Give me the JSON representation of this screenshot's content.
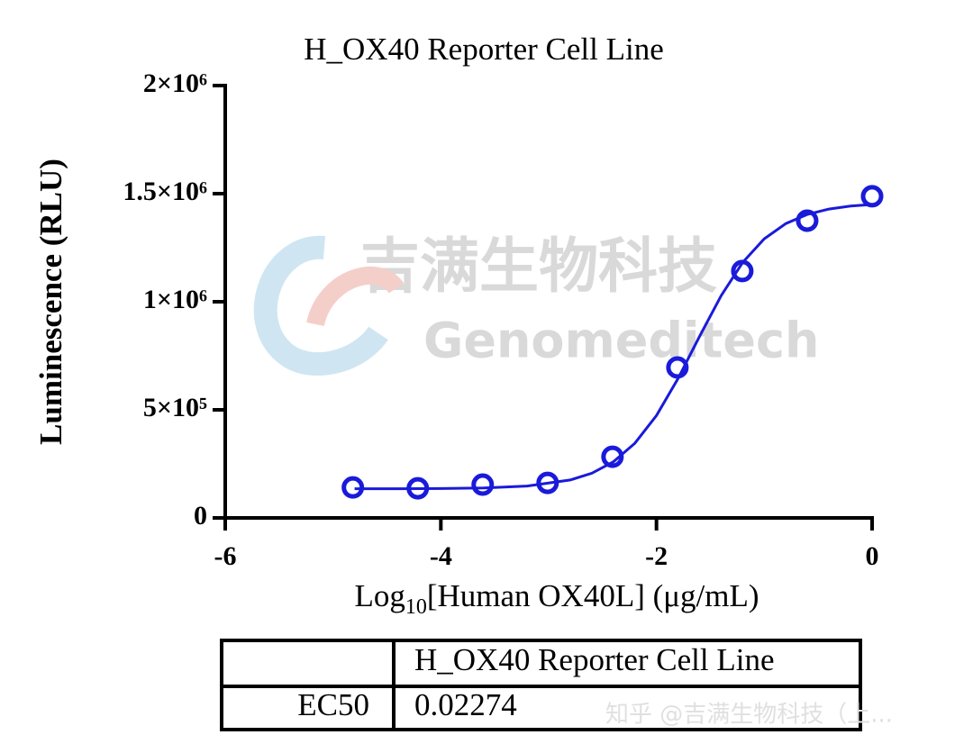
{
  "chart_data": {
    "type": "scatter",
    "title": "H_OX40 Reporter Cell Line",
    "ylabel": "Luminescence (RLU)",
    "xlabel": [
      "Log",
      "10",
      "[Human OX40L] (μg/mL)"
    ],
    "x": [
      -4.816,
      -4.214,
      -3.612,
      -3.01,
      -2.408,
      -1.806,
      -1.204,
      -0.602,
      0
    ],
    "values": [
      141000,
      137000,
      154000,
      162000,
      283000,
      696000,
      1142000,
      1375000,
      1488000
    ],
    "color": "#1a1adb",
    "curve": {
      "x": [
        -4.8,
        -4.4,
        -4.0,
        -3.6,
        -3.2,
        -2.8,
        -2.6,
        -2.4,
        -2.2,
        -2.0,
        -1.8,
        -1.6,
        -1.4,
        -1.2,
        -1.0,
        -0.8,
        -0.6,
        -0.4,
        -0.2,
        0
      ],
      "values": [
        135000,
        135000,
        136000,
        138800,
        147400,
        175300,
        206500,
        259500,
        345300,
        473900,
        644600,
        840200,
        1028400,
        1182000,
        1291200,
        1361600,
        1404000,
        1428700,
        1442600,
        1450000
      ]
    },
    "xlim": [
      -6,
      0
    ],
    "xticks": [
      -6,
      -4,
      -2,
      0
    ],
    "ylim": [
      0,
      2000000
    ],
    "yticks": [
      0,
      {
        "value": 500000,
        "label": "5×10⁵"
      },
      {
        "value": 1000000,
        "label": "1×10⁶"
      },
      {
        "value": 1500000,
        "label": "1.5×10⁶"
      },
      {
        "value": 2000000,
        "label": "2×10⁶"
      }
    ]
  },
  "table": {
    "columns": [
      "H_OX40 Reporter Cell Line"
    ],
    "rows": [
      [
        "EC50",
        "0.02274"
      ]
    ]
  },
  "watermark": [
    "吉满生物科技",
    "Genomeditech"
  ],
  "footer": "知乎 @吉满生物科技（上..."
}
